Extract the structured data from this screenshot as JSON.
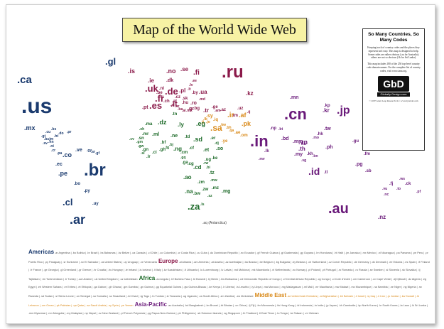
{
  "title": "Map of the World Wide Web",
  "sidebar": {
    "heading": "So Many Countries, So Many Codes",
    "para1": "Keeping track of country codes and the places they represent isn't easy. This map is designed to help. Some codes are rather obvious (.au for Australia); others are not so obvious (.lk for Sri Lanka).",
    "para2": "This map includes 180 of the 250 top-level country code domain names. For the complete list of country codes, visit www.iana.org.",
    "logo": "GbD",
    "site": "Globally-Design.com",
    "copyright": "© 2007 Giant Leap Research LLC www.bytetrail.com"
  },
  "antarctica": ".aq (Antarctica)",
  "colors": {
    "americas": "#1a3a6e",
    "europe": "#8b1a4a",
    "africa": "#1e6b2a",
    "middle_east": "#d98a1a",
    "asia_pacific": "#6a1a7a",
    "title_bg": "#f7f2a4"
  },
  "legend": {
    "americas_h": "Americas",
    "americas": ".ar Argentina | .bo Bolivia | .br Brazil | .bs Bahamas | .bz Belize | .ca Canada | .cl Chile | .co Colombia | .cr Costa Rica | .cu Cuba | .do Dominican Republic | .ec Ecuador | .gf French Guiana | .gt Guatemala | .gy Guyana | .hn Honduras | .ht Haiti | .jm Jamaica | .mx Mexico | .ni Nicaragua | .pa Panama | .pe Peru | .pr Puerto Rico | .py Paraguay | .sr Suriname | .sv El Salvador | .us United States | .uy Uruguay | .ve Venezuela",
    "europe_h": "Europe",
    "europe": ".al Albania | .am Armenia | .at Austria | .az Azerbaijan | .ba Bosnia | .be Belgium | .bg Bulgaria | .by Belarus | .ch Switzerland | .cz Czech Republic | .de Germany | .dk Denmark | .ee Estonia | .es Spain | .fi Finland | .fr France | .ge Georgia | .gl Greenland | .gr Greece | .hr Croatia | .hu Hungary | .ie Ireland | .is Iceland | .it Italy | .kz Kazakhstan | .lt Lithuania | .lu Luxembourg | .lv Latvia | .md Moldova | .mk Macedonia | .nl Netherlands | .no Norway | .pl Poland | .pt Portugal | .ro Romania | .ru Russia | .se Sweden | .si Slovenia | .sk Slovakia | .tj Tajikistan | .tm Turkmenistan | .tr Turkey | .ua Ukraine | .uk United Kingdom | .uz Uzbekistan",
    "africa_h": "Africa",
    "africa": ".ao Angola | .bf Burkina Faso | .bi Burundi | .bj Benin | .bw Botswana | .cd Democratic Republic of Congo | .cf Central African Republic | .cg Congo | .ci Cote d'Ivoire | .cm Cameroon | .cv Cape Verde | .dj Djibouti | .dz Algeria | .eg Egypt | .eh Western Sahara | .er Eritrea | .et Ethiopia | .ga Gabon | .gh Ghana | .gm Gambia | .gn Guinea | .gq Equatorial Guinea | .gw Guinea-Bissau | .ke Kenya | .lr Liberia | .ls Lesotho | .ly Libya | .ma Morocco | .mg Madagascar | .ml Mali | .mr Mauritania | .mw Malawi | .mz Mozambique | .na Namibia | .ne Niger | .ng Nigeria | .rw Rwanda | .sd Sudan | .sl Sierra Leone | .sn Senegal | .so Somalia | .sz Swaziland | .td Chad | .tg Togo | .tn Tunisia | .tz Tanzania | .ug Uganda | .za South Africa | .zm Zambia | .zw Zimbabwe",
    "middle_east_h": "Middle East",
    "middle_east": ".ae United Arab Emirates | .af Afghanistan | .bh Bahrain | .il Israel | .iq Iraq | .ir Iran | .jo Jordan | .kw Kuwait | .lb Lebanon | .om Oman | .pk Pakistan | .qa Qatar | .sa Saudi Arabia | .sy Syria | .ye Yemen",
    "asia_pacific_h": "Asia-Pacific",
    "asia_pacific": ".au Australia | .bd Bangladesh | .bn Brunei | .bt Bhutan | .cn China | .fj Fiji | .fm Micronesia | .hk Hong Kong | .id Indonesia | .in India | .jp Japan | .kh Cambodia | .kp North Korea | .kr South Korea | .la Laos | .lk Sri Lanka | .mm Myanmar | .mn Mongolia | .my Malaysia | .np Nepal | .nz New Zealand | .pf French Polynesia | .pg Papua New Guinea | .ph Philippines | .sb Solomon Islands | .sg Singapore | .th Thailand | .tl East Timor | .to Tonga | .tw Taiwan | .vn Vietnam"
  },
  "tlds": [
    {
      "t": ".gl",
      "c": "americas"
    },
    {
      "t": ".ca",
      "c": "americas"
    },
    {
      "t": ".us",
      "c": "americas"
    },
    {
      "t": ".mx",
      "c": "americas"
    },
    {
      "t": ".cu",
      "c": "americas"
    },
    {
      "t": ".bs",
      "c": "americas"
    },
    {
      "t": ".do",
      "c": "americas"
    },
    {
      "t": ".pr",
      "c": "americas"
    },
    {
      "t": ".ht",
      "c": "americas"
    },
    {
      "t": ".jm",
      "c": "americas"
    },
    {
      "t": ".gt",
      "c": "americas"
    },
    {
      "t": ".hn",
      "c": "americas"
    },
    {
      "t": ".ni",
      "c": "americas"
    },
    {
      "t": ".sv",
      "c": "americas"
    },
    {
      "t": ".cr",
      "c": "americas"
    },
    {
      "t": ".pa",
      "c": "americas"
    },
    {
      "t": ".co",
      "c": "americas"
    },
    {
      "t": ".ve",
      "c": "americas"
    },
    {
      "t": ".gy",
      "c": "americas"
    },
    {
      "t": ".sr",
      "c": "americas"
    },
    {
      "t": ".gf",
      "c": "americas"
    },
    {
      "t": ".ec",
      "c": "americas"
    },
    {
      "t": ".pe",
      "c": "americas"
    },
    {
      "t": ".br",
      "c": "americas"
    },
    {
      "t": ".bo",
      "c": "americas"
    },
    {
      "t": ".py",
      "c": "americas"
    },
    {
      "t": ".cl",
      "c": "americas"
    },
    {
      "t": ".uy",
      "c": "americas"
    },
    {
      "t": ".ar",
      "c": "americas"
    },
    {
      "t": ".bz",
      "c": "americas"
    },
    {
      "t": ".is",
      "c": "europe"
    },
    {
      "t": ".no",
      "c": "europe"
    },
    {
      "t": ".se",
      "c": "europe"
    },
    {
      "t": ".fi",
      "c": "europe"
    },
    {
      "t": ".ru",
      "c": "europe"
    },
    {
      "t": ".ie",
      "c": "europe"
    },
    {
      "t": ".uk",
      "c": "europe"
    },
    {
      "t": ".dk",
      "c": "europe"
    },
    {
      "t": ".ee",
      "c": "europe"
    },
    {
      "t": ".lv",
      "c": "europe"
    },
    {
      "t": ".lt",
      "c": "europe"
    },
    {
      "t": ".nl",
      "c": "europe"
    },
    {
      "t": ".be",
      "c": "europe"
    },
    {
      "t": ".de",
      "c": "europe"
    },
    {
      "t": ".pl",
      "c": "europe"
    },
    {
      "t": ".by",
      "c": "europe"
    },
    {
      "t": ".lu",
      "c": "europe"
    },
    {
      "t": ".cz",
      "c": "europe"
    },
    {
      "t": ".sk",
      "c": "europe"
    },
    {
      "t": ".ua",
      "c": "europe"
    },
    {
      "t": ".fr",
      "c": "europe"
    },
    {
      "t": ".ch",
      "c": "europe"
    },
    {
      "t": ".at",
      "c": "europe"
    },
    {
      "t": ".hu",
      "c": "europe"
    },
    {
      "t": ".md",
      "c": "europe"
    },
    {
      "t": ".si",
      "c": "europe"
    },
    {
      "t": ".hr",
      "c": "europe"
    },
    {
      "t": ".ro",
      "c": "europe"
    },
    {
      "t": ".ba",
      "c": "europe"
    },
    {
      "t": ".bg",
      "c": "europe"
    },
    {
      "t": ".es",
      "c": "europe"
    },
    {
      "t": ".pt",
      "c": "europe"
    },
    {
      "t": ".it",
      "c": "europe"
    },
    {
      "t": ".al",
      "c": "europe"
    },
    {
      "t": ".mk",
      "c": "europe"
    },
    {
      "t": ".gr",
      "c": "europe"
    },
    {
      "t": ".tr",
      "c": "europe"
    },
    {
      "t": ".ge",
      "c": "europe"
    },
    {
      "t": ".am",
      "c": "europe"
    },
    {
      "t": ".az",
      "c": "europe"
    },
    {
      "t": ".kz",
      "c": "europe"
    },
    {
      "t": ".uz",
      "c": "europe"
    },
    {
      "t": ".tm",
      "c": "europe"
    },
    {
      "t": ".tj",
      "c": "europe"
    },
    {
      "t": ".sy",
      "c": "middle_east"
    },
    {
      "t": ".lb",
      "c": "middle_east"
    },
    {
      "t": ".il",
      "c": "middle_east"
    },
    {
      "t": ".jo",
      "c": "middle_east"
    },
    {
      "t": ".iq",
      "c": "middle_east"
    },
    {
      "t": ".ir",
      "c": "middle_east"
    },
    {
      "t": ".kw",
      "c": "middle_east"
    },
    {
      "t": ".af",
      "c": "middle_east"
    },
    {
      "t": ".sa",
      "c": "middle_east"
    },
    {
      "t": ".bh",
      "c": "middle_east"
    },
    {
      "t": ".qa",
      "c": "middle_east"
    },
    {
      "t": ".ae",
      "c": "middle_east"
    },
    {
      "t": ".om",
      "c": "middle_east"
    },
    {
      "t": ".ye",
      "c": "middle_east"
    },
    {
      "t": ".pk",
      "c": "middle_east"
    },
    {
      "t": ".ma",
      "c": "africa"
    },
    {
      "t": ".dz",
      "c": "africa"
    },
    {
      "t": ".tn",
      "c": "africa"
    },
    {
      "t": ".ly",
      "c": "africa"
    },
    {
      "t": ".eg",
      "c": "africa"
    },
    {
      "t": ".eh",
      "c": "africa"
    },
    {
      "t": ".mr",
      "c": "africa"
    },
    {
      "t": ".ml",
      "c": "africa"
    },
    {
      "t": ".ne",
      "c": "africa"
    },
    {
      "t": ".td",
      "c": "africa"
    },
    {
      "t": ".sd",
      "c": "africa"
    },
    {
      "t": ".er",
      "c": "africa"
    },
    {
      "t": ".dj",
      "c": "africa"
    },
    {
      "t": ".so",
      "c": "africa"
    },
    {
      "t": ".et",
      "c": "africa"
    },
    {
      "t": ".sn",
      "c": "africa"
    },
    {
      "t": ".gm",
      "c": "africa"
    },
    {
      "t": ".gw",
      "c": "africa"
    },
    {
      "t": ".gn",
      "c": "africa"
    },
    {
      "t": ".sl",
      "c": "africa"
    },
    {
      "t": ".lr",
      "c": "africa"
    },
    {
      "t": ".ci",
      "c": "africa"
    },
    {
      "t": ".gh",
      "c": "africa"
    },
    {
      "t": ".tg",
      "c": "africa"
    },
    {
      "t": ".bj",
      "c": "africa"
    },
    {
      "t": ".bf",
      "c": "africa"
    },
    {
      "t": ".ng",
      "c": "africa"
    },
    {
      "t": ".cm",
      "c": "africa"
    },
    {
      "t": ".cf",
      "c": "africa"
    },
    {
      "t": ".gq",
      "c": "africa"
    },
    {
      "t": ".ga",
      "c": "africa"
    },
    {
      "t": ".cg",
      "c": "africa"
    },
    {
      "t": ".cd",
      "c": "africa"
    },
    {
      "t": ".ug",
      "c": "africa"
    },
    {
      "t": ".ke",
      "c": "africa"
    },
    {
      "t": ".rw",
      "c": "africa"
    },
    {
      "t": ".bi",
      "c": "africa"
    },
    {
      "t": ".tz",
      "c": "africa"
    },
    {
      "t": ".ao",
      "c": "africa"
    },
    {
      "t": ".zm",
      "c": "africa"
    },
    {
      "t": ".mw",
      "c": "africa"
    },
    {
      "t": ".mz",
      "c": "africa"
    },
    {
      "t": ".zw",
      "c": "africa"
    },
    {
      "t": ".na",
      "c": "africa"
    },
    {
      "t": ".bw",
      "c": "africa"
    },
    {
      "t": ".za",
      "c": "africa"
    },
    {
      "t": ".sz",
      "c": "africa"
    },
    {
      "t": ".ls",
      "c": "africa"
    },
    {
      "t": ".mg",
      "c": "africa"
    },
    {
      "t": ".cv",
      "c": "africa"
    },
    {
      "t": ".cn",
      "c": "asia_pacific"
    },
    {
      "t": ".mn",
      "c": "asia_pacific"
    },
    {
      "t": ".kp",
      "c": "asia_pacific"
    },
    {
      "t": ".kr",
      "c": "asia_pacific"
    },
    {
      "t": ".jp",
      "c": "asia_pacific"
    },
    {
      "t": ".in",
      "c": "asia_pacific"
    },
    {
      "t": ".np",
      "c": "asia_pacific"
    },
    {
      "t": ".bt",
      "c": "asia_pacific"
    },
    {
      "t": ".bd",
      "c": "asia_pacific"
    },
    {
      "t": ".mm",
      "c": "asia_pacific"
    },
    {
      "t": ".la",
      "c": "asia_pacific"
    },
    {
      "t": ".th",
      "c": "asia_pacific"
    },
    {
      "t": ".kh",
      "c": "asia_pacific"
    },
    {
      "t": ".vn",
      "c": "asia_pacific"
    },
    {
      "t": ".hk",
      "c": "asia_pacific"
    },
    {
      "t": ".tw",
      "c": "asia_pacific"
    },
    {
      "t": ".ph",
      "c": "asia_pacific"
    },
    {
      "t": ".my",
      "c": "asia_pacific"
    },
    {
      "t": ".sg",
      "c": "asia_pacific"
    },
    {
      "t": ".bn",
      "c": "asia_pacific"
    },
    {
      "t": ".id",
      "c": "asia_pacific"
    },
    {
      "t": ".tl",
      "c": "asia_pacific"
    },
    {
      "t": ".lk",
      "c": "asia_pacific"
    },
    {
      "t": ".pg",
      "c": "asia_pacific"
    },
    {
      "t": ".au",
      "c": "asia_pacific"
    },
    {
      "t": ".nz",
      "c": "asia_pacific"
    },
    {
      "t": ".fj",
      "c": "asia_pacific"
    },
    {
      "t": ".sb",
      "c": "asia_pacific"
    },
    {
      "t": ".fm",
      "c": "asia_pacific"
    },
    {
      "t": ".to",
      "c": "asia_pacific"
    },
    {
      "t": ".ck",
      "c": "asia_pacific"
    },
    {
      "t": ".pf",
      "c": "asia_pacific"
    },
    {
      "t": ".gu",
      "c": "asia_pacific"
    },
    {
      "t": ".nc",
      "c": "asia_pacific"
    },
    {
      "t": ".vu",
      "c": "asia_pacific"
    },
    {
      "t": ".ws",
      "c": "asia_pacific"
    },
    {
      "t": ".mv",
      "c": "asia_pacific"
    },
    {
      "t": ".mo",
      "c": "asia_pacific"
    }
  ]
}
